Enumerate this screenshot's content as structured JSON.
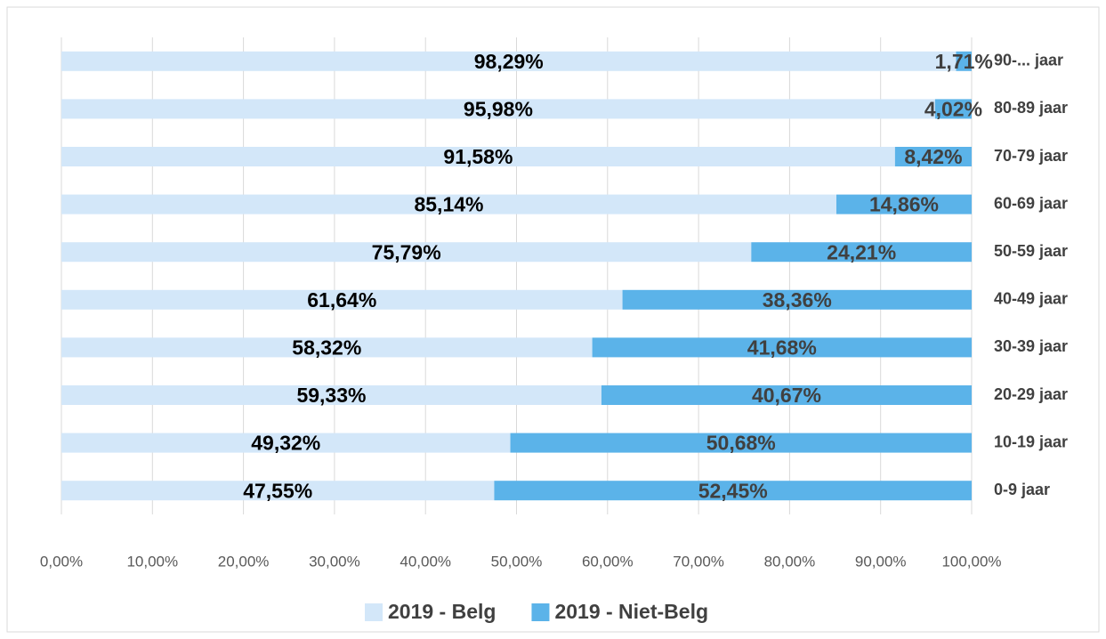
{
  "chart_data": {
    "type": "bar",
    "horizontal": true,
    "stacked": true,
    "grid": true,
    "legend": "bottom",
    "categories": [
      "90-... jaar",
      "80-89 jaar",
      "70-79 jaar",
      "60-69 jaar",
      "50-59 jaar",
      "40-49 jaar",
      "30-39 jaar",
      "20-29 jaar",
      "10-19 jaar",
      "0-9 jaar"
    ],
    "series": [
      {
        "name": "2019 - Belg",
        "color": "#d3e7f9",
        "label_color": "#000000",
        "values": [
          98.29,
          95.98,
          91.58,
          85.14,
          75.79,
          61.64,
          58.32,
          59.33,
          49.32,
          47.55
        ],
        "value_labels": [
          "98,29%",
          "95,98%",
          "91,58%",
          "85,14%",
          "75,79%",
          "61,64%",
          "58,32%",
          "59,33%",
          "49,32%",
          "47,55%"
        ]
      },
      {
        "name": "2019 - Niet-Belg",
        "color": "#5bb3e9",
        "label_color": "#404040",
        "values": [
          1.71,
          4.02,
          8.42,
          14.86,
          24.21,
          38.36,
          41.68,
          40.67,
          50.68,
          52.45
        ],
        "value_labels": [
          "1,71%",
          "4,02%",
          "8,42%",
          "14,86%",
          "24,21%",
          "38,36%",
          "41,68%",
          "40,67%",
          "50,68%",
          "52,45%"
        ]
      }
    ],
    "xlim": [
      0,
      100
    ],
    "xticks": [
      {
        "value": 0,
        "label": "0,00%"
      },
      {
        "value": 10,
        "label": "10,00%"
      },
      {
        "value": 20,
        "label": "20,00%"
      },
      {
        "value": 30,
        "label": "30,00%"
      },
      {
        "value": 40,
        "label": "40,00%"
      },
      {
        "value": 50,
        "label": "50,00%"
      },
      {
        "value": 60,
        "label": "60,00%"
      },
      {
        "value": 70,
        "label": "70,00%"
      },
      {
        "value": 80,
        "label": "80,00%"
      },
      {
        "value": 90,
        "label": "90,00%"
      },
      {
        "value": 100,
        "label": "100,00%"
      }
    ]
  }
}
